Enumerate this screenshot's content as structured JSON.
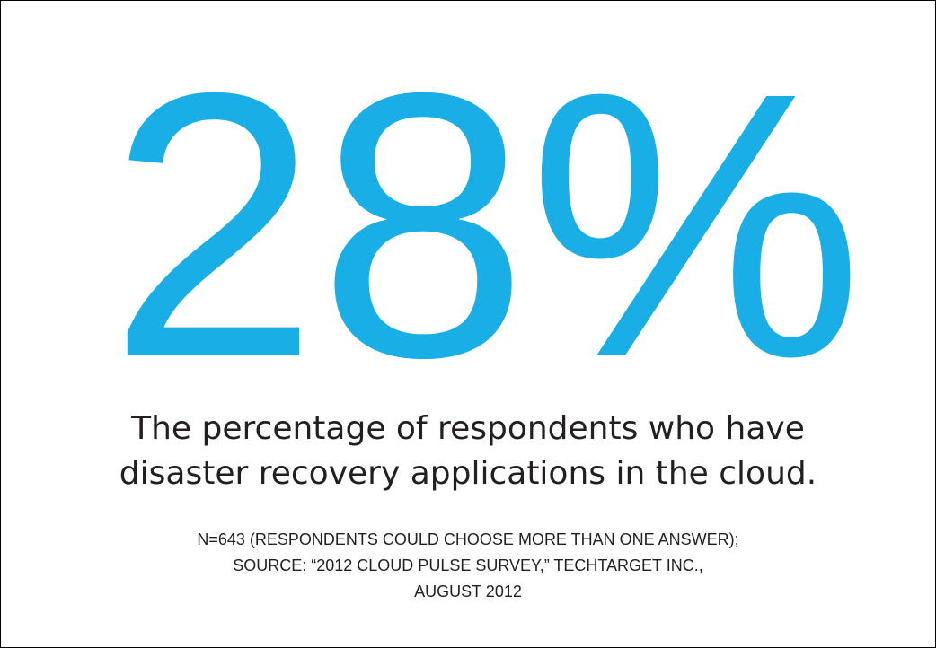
{
  "stat": "28%",
  "description": [
    "The percentage of respondents who have",
    "disaster recovery applications in the cloud."
  ],
  "source": [
    "N=643 (RESPONDENTS COULD CHOOSE MORE THAN ONE ANSWER);",
    "SOURCE: “2012 CLOUD PULSE SURVEY,” TECHTARGET INC.,",
    "AUGUST 2012"
  ]
}
